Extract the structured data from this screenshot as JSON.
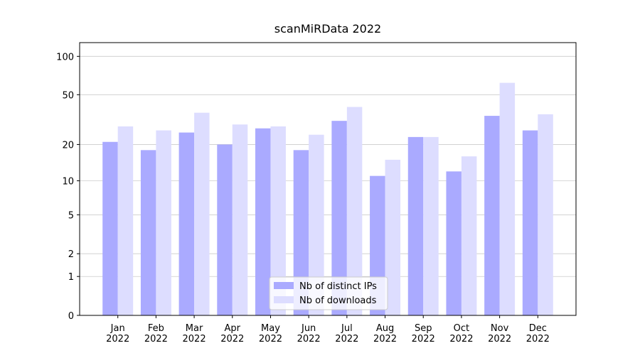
{
  "chart_data": {
    "type": "bar",
    "title": "scanMiRData 2022",
    "categories": [
      "Jan\n2022",
      "Feb\n2022",
      "Mar\n2022",
      "Apr\n2022",
      "May\n2022",
      "Jun\n2022",
      "Jul\n2022",
      "Aug\n2022",
      "Sep\n2022",
      "Oct\n2022",
      "Nov\n2022",
      "Dec\n2022"
    ],
    "series": [
      {
        "name": "Nb of distinct IPs",
        "color": "#aaaaff",
        "values": [
          21,
          18,
          25,
          20,
          27,
          18,
          31,
          11,
          23,
          12,
          34,
          26
        ]
      },
      {
        "name": "Nb of downloads",
        "color": "#ddddff",
        "values": [
          28,
          26,
          36,
          29,
          28,
          24,
          40,
          15,
          23,
          16,
          62,
          35
        ]
      }
    ],
    "yscale": "log1p",
    "ylim": [
      0,
      128
    ],
    "yticks": [
      0,
      1,
      2,
      5,
      10,
      20,
      50,
      100
    ],
    "grid": true,
    "legend": "lower center"
  }
}
